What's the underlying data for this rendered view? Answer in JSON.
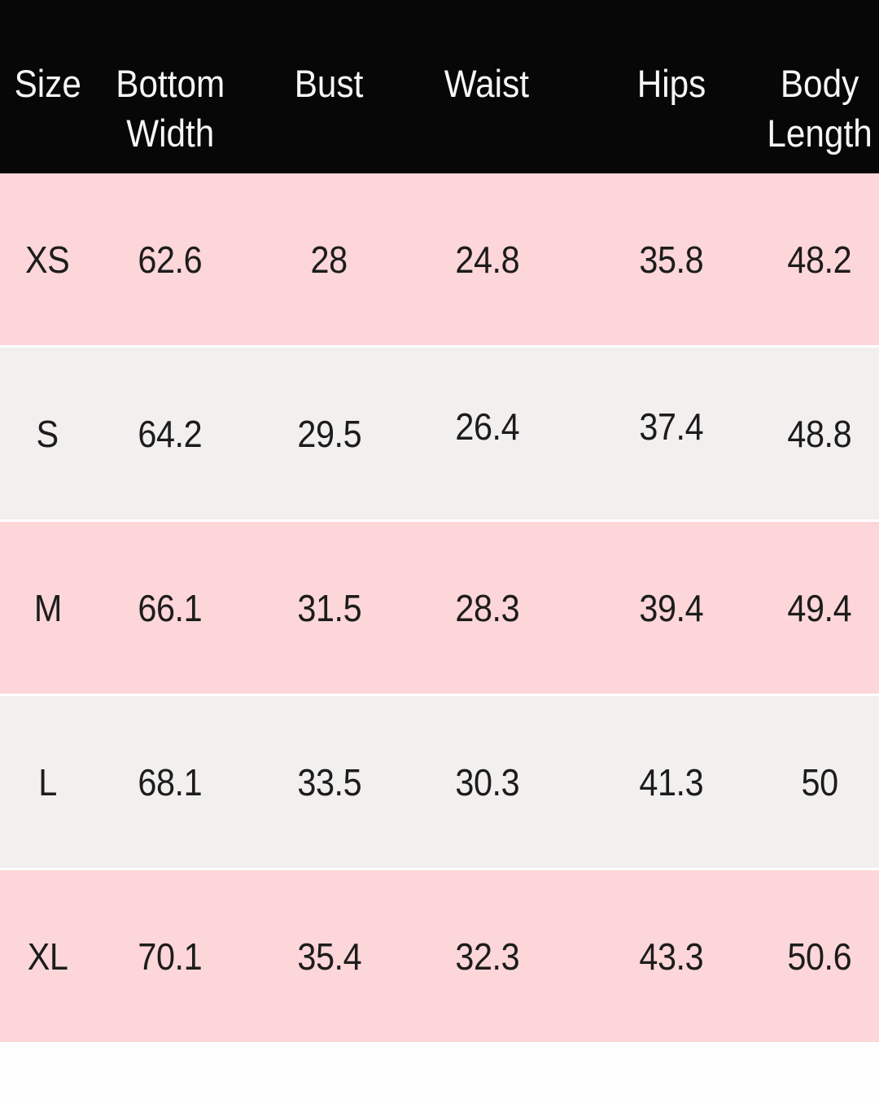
{
  "chart_data": {
    "type": "table",
    "columns": [
      "Size",
      "Bottom Width",
      "Bust",
      "Waist",
      "Hips",
      "Body Length"
    ],
    "rows": [
      [
        "XS",
        "62.6",
        "28",
        "24.8",
        "35.8",
        "48.2"
      ],
      [
        "S",
        "64.2",
        "29.5",
        "26.4",
        "37.4",
        "48.8"
      ],
      [
        "M",
        "66.1",
        "31.5",
        "28.3",
        "39.4",
        "49.4"
      ],
      [
        "L",
        "68.1",
        "33.5",
        "30.3",
        "41.3",
        "50"
      ],
      [
        "XL",
        "70.1",
        "35.4",
        "32.3",
        "43.3",
        "50.6"
      ]
    ]
  },
  "colors": {
    "header_bg": "#070707",
    "header_text": "#f7f5f5",
    "row_pink": "#fcd6d8",
    "row_gray": "#f1f0ef",
    "data_text": "#1d1c1c",
    "page_bg": "#fefefe"
  }
}
